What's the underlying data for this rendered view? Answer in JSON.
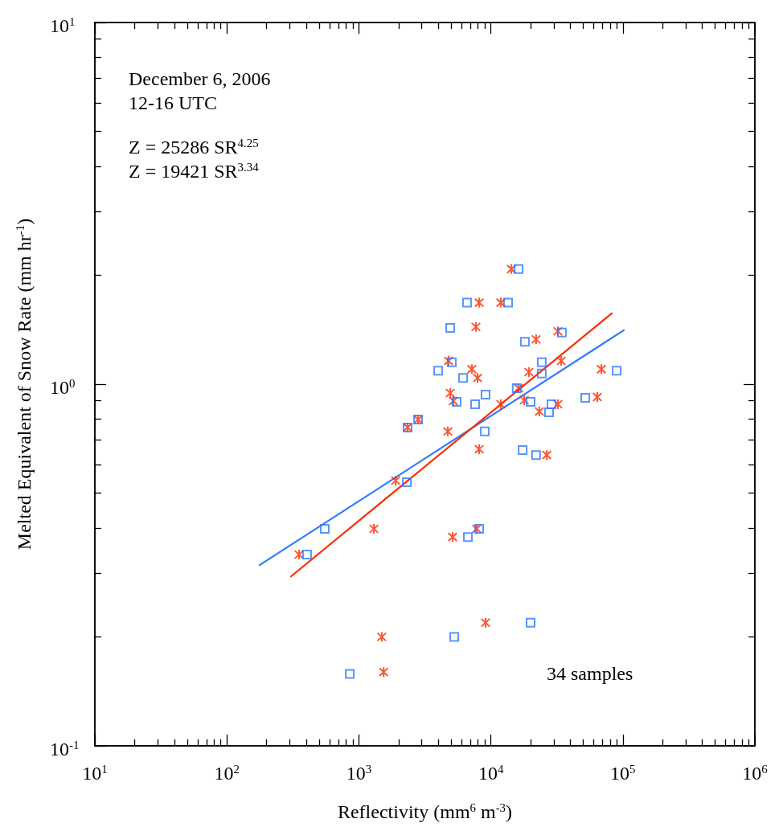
{
  "chart_data": {
    "type": "scatter",
    "xlabel": "Reflectivity (mm$^{6}$ m$^{-3}$)",
    "ylabel": "Melted Equivalent of Snow Rate (mm hr$^{-1}$)",
    "annotations": [
      "December 6, 2006",
      "12-16 UTC",
      "Z = 25286 SR$^{4.25}$",
      "Z = 19421 SR$^{3.34}$",
      "34 samples"
    ],
    "log": "xy",
    "grid": false,
    "xlim": [
      10,
      1000000
    ],
    "ylim": [
      0.1,
      10
    ],
    "xticks": [
      {
        "value": 10,
        "label": "10$^{1}$"
      },
      {
        "value": 100,
        "label": "10$^{2}$"
      },
      {
        "value": 1000,
        "label": "10$^{3}$"
      },
      {
        "value": 10000,
        "label": "10$^{4}$"
      },
      {
        "value": 100000,
        "label": "10$^{5}$"
      },
      {
        "value": 1000000,
        "label": "10$^{6}$"
      }
    ],
    "yticks": [
      {
        "value": 0.1,
        "label": "10$^{-1}$"
      },
      {
        "value": 1,
        "label": "10$^{0}$"
      },
      {
        "value": 10,
        "label": "10$^{1}$"
      }
    ],
    "series": [
      {
        "marker": "square",
        "color": "#2e7bff",
        "x": [
          16200,
          6600,
          13500,
          4920,
          34500,
          18100,
          5060,
          24300,
          24300,
          3990,
          6160,
          89700,
          15700,
          9110,
          51900,
          5500,
          7600,
          20000,
          28800,
          27600,
          2340,
          2810,
          9000,
          17400,
          22000,
          2310,
          552,
          8150,
          6700,
          405,
          20000,
          5280,
          853
        ],
        "values": [
          2.08,
          1.68,
          1.68,
          1.43,
          1.39,
          1.31,
          1.15,
          1.15,
          1.07,
          1.09,
          1.04,
          1.09,
          0.975,
          0.936,
          0.917,
          0.894,
          0.88,
          0.894,
          0.88,
          0.836,
          0.759,
          0.798,
          0.74,
          0.657,
          0.637,
          0.536,
          0.398,
          0.398,
          0.378,
          0.338,
          0.219,
          0.2,
          0.158
        ]
      },
      {
        "marker": "cross",
        "color": "#ff2a00",
        "x": [
          8150,
          11900,
          7700,
          4780,
          7180,
          7930,
          4920,
          5200,
          2810,
          2340,
          4720,
          8150,
          14300,
          32200,
          22000,
          34100,
          19400,
          16200,
          68700,
          17900,
          23300,
          32200,
          64000,
          26500,
          1900,
          1300,
          5130,
          7810,
          9110,
          1490,
          1540,
          352,
          11900
        ],
        "values": [
          1.68,
          1.68,
          1.44,
          1.16,
          1.1,
          1.04,
          0.945,
          0.898,
          0.798,
          0.759,
          0.74,
          0.661,
          2.08,
          1.4,
          1.33,
          1.16,
          1.08,
          0.975,
          1.1,
          0.903,
          0.84,
          0.88,
          0.921,
          0.637,
          0.541,
          0.398,
          0.378,
          0.398,
          0.219,
          0.2,
          0.16,
          0.338,
          0.88
        ]
      },
      {
        "type": "line",
        "marker": "none",
        "line_style": "solid",
        "color": "#2e7bff",
        "x": [
          177,
          101700
        ],
        "values": [
          0.316,
          1.41
        ]
      },
      {
        "type": "line",
        "marker": "none",
        "line_style": "solid",
        "color": "#ff2a00",
        "x": [
          306,
          82400
        ],
        "values": [
          0.294,
          1.57
        ]
      }
    ]
  }
}
